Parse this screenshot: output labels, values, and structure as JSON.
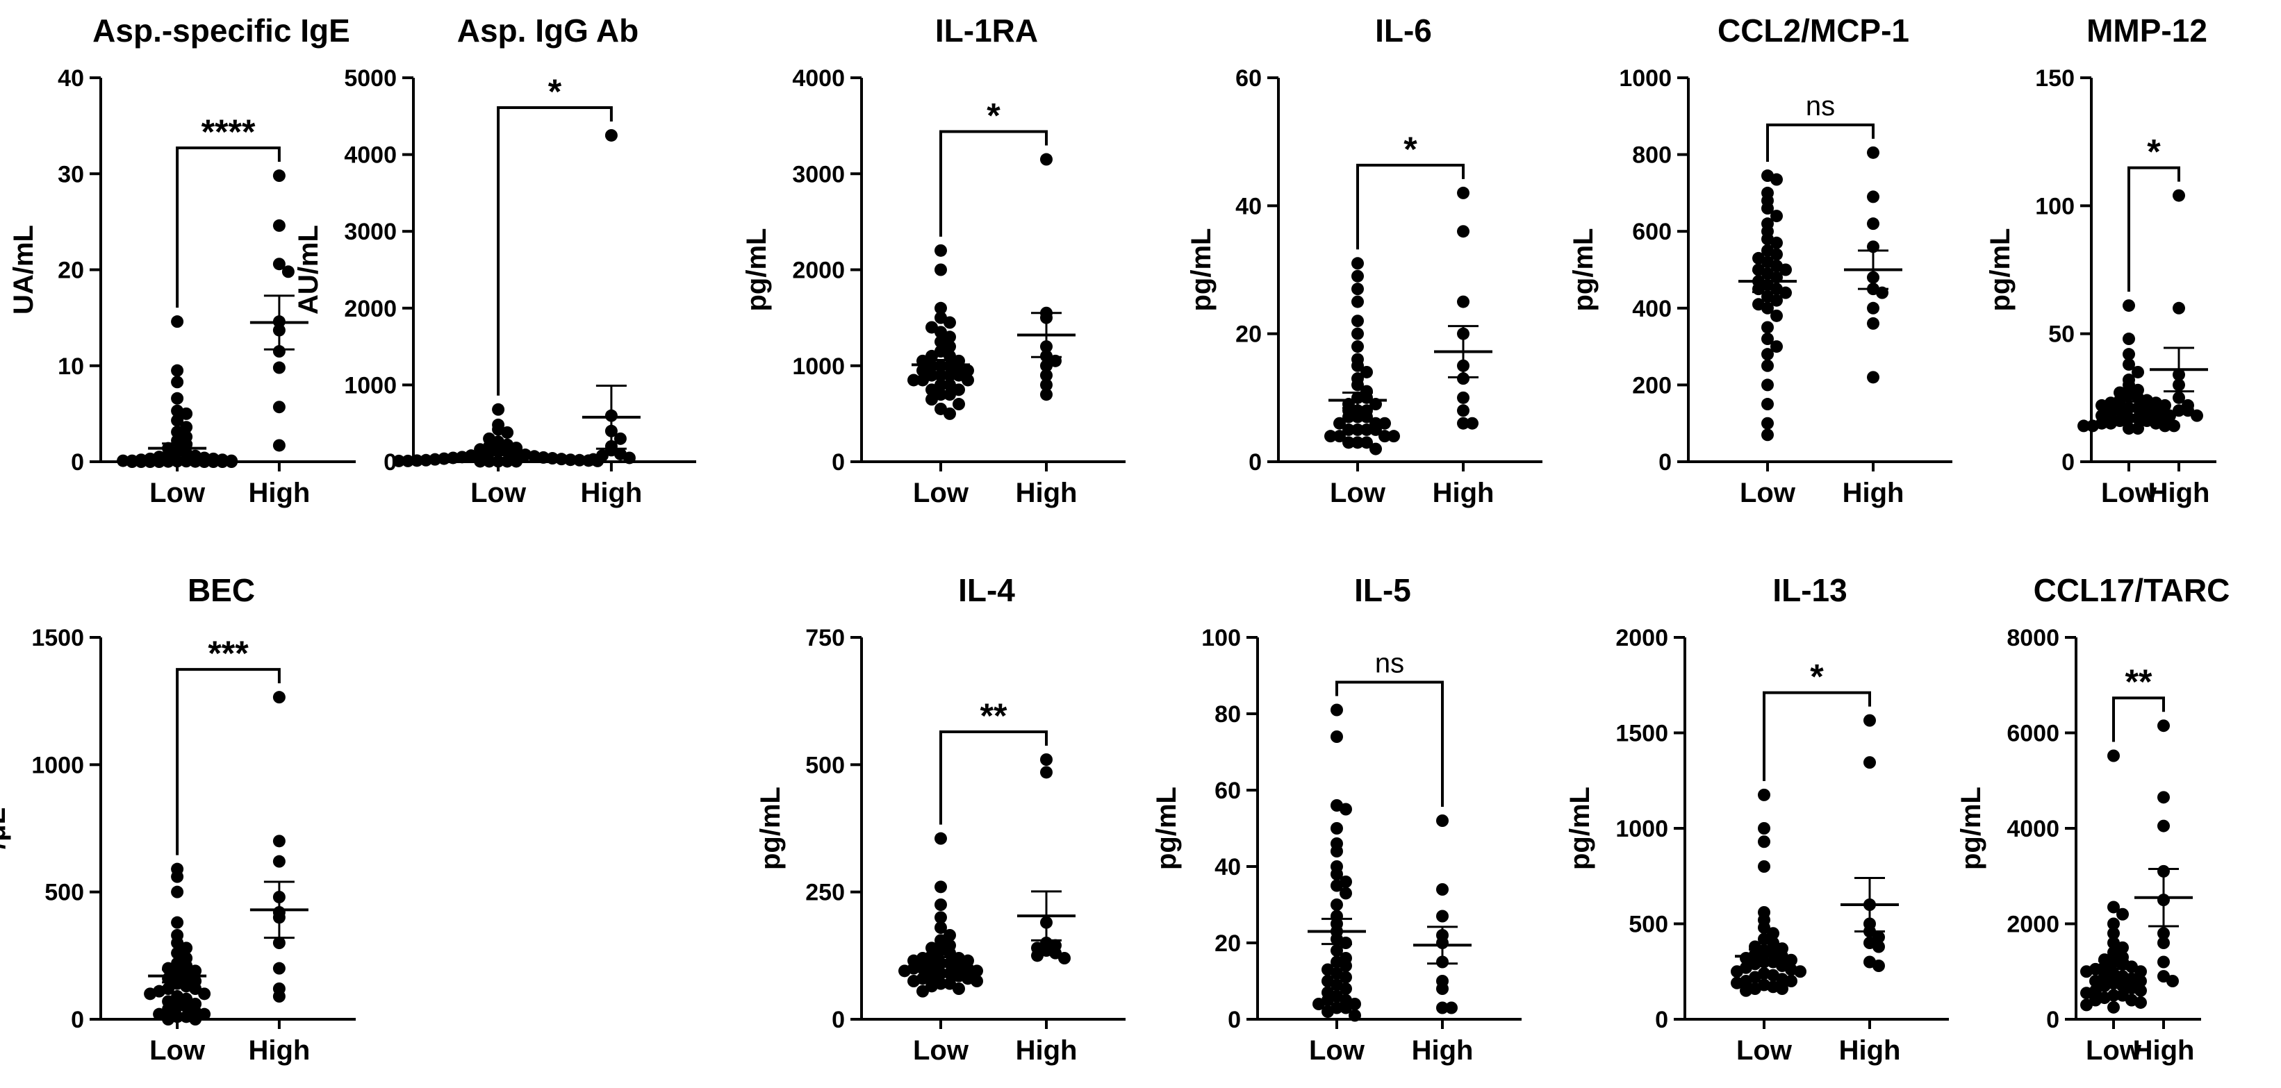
{
  "chart_data": [
    {
      "type": "scatter",
      "title": "Asp.-specific IgE",
      "ylabel": "UA/mL",
      "categories": [
        "Low",
        "High"
      ],
      "ylim": [
        0,
        40
      ],
      "yticks": [
        "0",
        "10",
        "20",
        "30",
        "40"
      ],
      "significance": "****",
      "series": [
        {
          "name": "Low",
          "values": [
            14.6,
            9.5,
            8.3,
            6.6,
            5.3,
            5.0,
            4.3,
            3.6,
            3.1,
            2.6,
            2.2,
            1.8,
            1.4,
            1.1,
            0.9,
            0.7,
            0.6,
            0.5,
            0.4,
            0.3,
            0.3,
            0.2,
            0.2,
            0.1,
            0.1,
            0.1,
            0.05,
            0.05,
            0.02,
            0.02,
            0.0,
            0.0,
            0.0,
            0.0,
            0.0,
            0.0,
            0.0,
            0.0
          ],
          "mean": 1.4,
          "sem": 0.5
        },
        {
          "name": "High",
          "values": [
            29.8,
            24.6,
            20.6,
            19.8,
            14.6,
            13.7,
            11.5,
            9.8,
            5.7,
            1.7
          ],
          "mean": 14.5,
          "sem": 2.8
        }
      ]
    },
    {
      "type": "scatter",
      "title": "Asp. IgG Ab",
      "ylabel": "AU/mL",
      "categories": [
        "Low",
        "High"
      ],
      "ylim": [
        0,
        5000
      ],
      "yticks": [
        "0",
        "1000",
        "2000",
        "3000",
        "4000",
        "5000"
      ],
      "significance": "*",
      "series": [
        {
          "name": "Low",
          "values": [
            680,
            480,
            420,
            380,
            300,
            260,
            220,
            200,
            180,
            160,
            140,
            130,
            120,
            110,
            100,
            90,
            80,
            70,
            60,
            55,
            50,
            45,
            40,
            35,
            30,
            25,
            20,
            20,
            15,
            15,
            10,
            10,
            10,
            5,
            5,
            5,
            5,
            5
          ],
          "mean": 110,
          "sem": 25
        },
        {
          "name": "High",
          "values": [
            4250,
            600,
            400,
            300,
            200,
            150,
            100,
            80,
            50,
            30
          ],
          "mean": 580,
          "sem": 410
        }
      ]
    },
    {
      "type": "scatter",
      "title": "IL-1RA",
      "ylabel": "pg/mL",
      "categories": [
        "Low",
        "High"
      ],
      "ylim": [
        0,
        4000
      ],
      "yticks": [
        "0",
        "1000",
        "2000",
        "3000",
        "4000"
      ],
      "significance": "*",
      "series": [
        {
          "name": "Low",
          "values": [
            2200,
            2000,
            1600,
            1500,
            1450,
            1400,
            1350,
            1300,
            1250,
            1200,
            1150,
            1100,
            1100,
            1050,
            1050,
            1000,
            1000,
            1000,
            950,
            950,
            950,
            900,
            900,
            900,
            900,
            850,
            850,
            850,
            800,
            800,
            750,
            750,
            700,
            700,
            650,
            600,
            550,
            500
          ],
          "mean": 1010,
          "sem": 50
        },
        {
          "name": "High",
          "values": [
            3150,
            1550,
            1500,
            1200,
            1100,
            1050,
            1000,
            900,
            800,
            700
          ],
          "mean": 1320,
          "sem": 230
        }
      ]
    },
    {
      "type": "scatter",
      "title": "IL-6",
      "ylabel": "pg/mL",
      "categories": [
        "Low",
        "High"
      ],
      "ylim": [
        0,
        60
      ],
      "yticks": [
        "0",
        "20",
        "40",
        "60"
      ],
      "significance": "*",
      "series": [
        {
          "name": "Low",
          "values": [
            31,
            29,
            27,
            25,
            22,
            20,
            18,
            16,
            15,
            14,
            13,
            12,
            11,
            10,
            10,
            9,
            9,
            8,
            8,
            8,
            7,
            7,
            7,
            6,
            6,
            6,
            5,
            5,
            5,
            5,
            4,
            4,
            4,
            4,
            3,
            3,
            3,
            2
          ],
          "mean": 9.6,
          "sem": 1.2
        },
        {
          "name": "High",
          "values": [
            42,
            36,
            25,
            20,
            15,
            13,
            10,
            8,
            6,
            6
          ],
          "mean": 17.2,
          "sem": 4.0
        }
      ]
    },
    {
      "type": "scatter",
      "title": "CCL2/MCP-1",
      "ylabel": "pg/mL",
      "categories": [
        "Low",
        "High"
      ],
      "ylim": [
        0,
        1000
      ],
      "yticks": [
        "0",
        "200",
        "400",
        "600",
        "800",
        "1000"
      ],
      "significance": "ns",
      "series": [
        {
          "name": "Low",
          "values": [
            745,
            735,
            700,
            680,
            660,
            640,
            620,
            600,
            580,
            570,
            550,
            540,
            530,
            520,
            510,
            500,
            500,
            490,
            480,
            470,
            460,
            450,
            450,
            440,
            430,
            420,
            410,
            400,
            380,
            350,
            320,
            300,
            280,
            250,
            200,
            150,
            100,
            70
          ],
          "mean": 470,
          "sem": 28
        },
        {
          "name": "High",
          "values": [
            805,
            690,
            620,
            560,
            480,
            450,
            440,
            400,
            360,
            220
          ],
          "mean": 500,
          "sem": 50
        }
      ]
    },
    {
      "type": "scatter",
      "title": "MMP-12",
      "ylabel": "pg/mL",
      "categories": [
        "Low",
        "High"
      ],
      "ylim": [
        0,
        150
      ],
      "yticks": [
        "0",
        "50",
        "100",
        "150"
      ],
      "significance": "*",
      "series": [
        {
          "name": "Low",
          "values": [
            61,
            48,
            42,
            38,
            35,
            32,
            30,
            28,
            27,
            26,
            25,
            24,
            24,
            23,
            23,
            22,
            22,
            21,
            21,
            20,
            20,
            19,
            19,
            18,
            18,
            17,
            17,
            16,
            16,
            15,
            15,
            15,
            14,
            14,
            14,
            14,
            13,
            13
          ],
          "mean": 22,
          "sem": 1.5
        },
        {
          "name": "High",
          "values": [
            104,
            60,
            34,
            30,
            25,
            22,
            20,
            20,
            18,
            18
          ],
          "mean": 36,
          "sem": 8.5
        }
      ]
    },
    {
      "type": "scatter",
      "title": "BEC",
      "ylabel": "/μL",
      "categories": [
        "Low",
        "High"
      ],
      "ylim": [
        0,
        1500
      ],
      "yticks": [
        "0",
        "500",
        "1000",
        "1500"
      ],
      "significance": "***",
      "series": [
        {
          "name": "Low",
          "values": [
            590,
            560,
            500,
            380,
            330,
            300,
            280,
            260,
            240,
            220,
            210,
            200,
            190,
            180,
            170,
            160,
            150,
            140,
            130,
            120,
            120,
            110,
            100,
            100,
            90,
            80,
            70,
            60,
            50,
            50,
            40,
            30,
            20,
            20,
            10,
            10,
            0,
            0
          ],
          "mean": 170,
          "sem": 25
        },
        {
          "name": "High",
          "values": [
            1265,
            700,
            620,
            480,
            420,
            400,
            300,
            200,
            120,
            90
          ],
          "mean": 430,
          "sem": 110
        }
      ]
    },
    {
      "type": "scatter",
      "title": "IL-4",
      "ylabel": "pg/mL",
      "categories": [
        "Low",
        "High"
      ],
      "ylim": [
        0,
        750
      ],
      "yticks": [
        "0",
        "250",
        "500",
        "750"
      ],
      "significance": "**",
      "series": [
        {
          "name": "Low",
          "values": [
            355,
            260,
            225,
            200,
            180,
            165,
            155,
            145,
            140,
            135,
            130,
            125,
            120,
            120,
            115,
            115,
            110,
            110,
            105,
            105,
            100,
            100,
            100,
            95,
            95,
            90,
            90,
            85,
            85,
            80,
            80,
            75,
            75,
            70,
            70,
            65,
            60,
            55
          ],
          "mean": 113,
          "sem": 9
        },
        {
          "name": "High",
          "values": [
            510,
            485,
            190,
            150,
            145,
            140,
            135,
            130,
            125,
            120
          ],
          "mean": 203,
          "sem": 48
        }
      ]
    },
    {
      "type": "scatter",
      "title": "IL-5",
      "ylabel": "pg/mL",
      "categories": [
        "Low",
        "High"
      ],
      "ylim": [
        0,
        100
      ],
      "yticks": [
        "0",
        "20",
        "40",
        "60",
        "80",
        "100"
      ],
      "significance": "ns",
      "series": [
        {
          "name": "Low",
          "values": [
            81,
            74,
            56,
            55,
            50,
            46,
            44,
            40,
            38,
            36,
            35,
            33,
            30,
            27,
            25,
            23,
            21,
            20,
            18,
            16,
            15,
            14,
            13,
            12,
            11,
            10,
            9,
            8,
            7,
            6,
            5,
            5,
            4,
            4,
            3,
            3,
            2,
            1
          ],
          "mean": 23,
          "sem": 3.3
        },
        {
          "name": "High",
          "values": [
            52,
            34,
            27,
            22,
            20,
            15,
            10,
            8,
            3,
            3
          ],
          "mean": 19.4,
          "sem": 4.8
        }
      ]
    },
    {
      "type": "scatter",
      "title": "IL-13",
      "ylabel": "pg/mL",
      "categories": [
        "Low",
        "High"
      ],
      "ylim": [
        0,
        2000
      ],
      "yticks": [
        "0",
        "500",
        "1000",
        "1500",
        "2000"
      ],
      "significance": "*",
      "series": [
        {
          "name": "Low",
          "values": [
            1175,
            1000,
            930,
            800,
            560,
            520,
            480,
            450,
            420,
            400,
            380,
            370,
            360,
            350,
            340,
            330,
            320,
            310,
            300,
            300,
            290,
            280,
            270,
            260,
            250,
            250,
            240,
            230,
            220,
            210,
            200,
            200,
            190,
            180,
            170,
            160,
            160,
            150
          ],
          "mean": 330,
          "sem": 35
        },
        {
          "name": "High",
          "values": [
            1565,
            1345,
            600,
            500,
            460,
            430,
            400,
            380,
            300,
            280
          ],
          "mean": 600,
          "sem": 140
        }
      ]
    },
    {
      "type": "scatter",
      "title": "CCL17/TARC",
      "ylabel": "pg/mL",
      "categories": [
        "Low",
        "High"
      ],
      "ylim": [
        0,
        8000
      ],
      "yticks": [
        "0",
        "2000",
        "4000",
        "6000",
        "8000"
      ],
      "significance": "**",
      "series": [
        {
          "name": "Low",
          "values": [
            5520,
            2350,
            2200,
            2000,
            1800,
            1600,
            1500,
            1400,
            1300,
            1250,
            1200,
            1150,
            1100,
            1100,
            1050,
            1000,
            1000,
            950,
            900,
            900,
            850,
            800,
            800,
            750,
            700,
            700,
            650,
            600,
            600,
            550,
            500,
            500,
            450,
            400,
            400,
            350,
            300,
            250
          ],
          "mean": 1060,
          "sem": 160
        },
        {
          "name": "High",
          "values": [
            6150,
            4650,
            4050,
            3100,
            2500,
            1800,
            1600,
            1200,
            900,
            800
          ],
          "mean": 2550,
          "sem": 600
        }
      ]
    }
  ]
}
